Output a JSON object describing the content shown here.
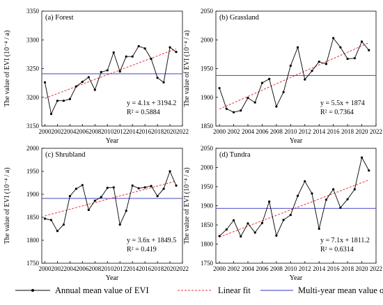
{
  "chart_data": [
    {
      "type": "line",
      "panel_label": "(a) Forest",
      "xlabel": "Year",
      "ylabel": "The value of EVI  (10⁻⁴ / a)",
      "xlim": [
        1999.5,
        2022
      ],
      "ylim": [
        3150,
        3350
      ],
      "xticks": [
        2000,
        2002,
        2004,
        2006,
        2008,
        2010,
        2012,
        2014,
        2016,
        2018,
        2020,
        2022
      ],
      "yticks": [
        3150,
        3200,
        3250,
        3300,
        3350
      ],
      "x": [
        2000,
        2001,
        2002,
        2003,
        2004,
        2005,
        2006,
        2007,
        2008,
        2009,
        2010,
        2011,
        2012,
        2013,
        2014,
        2015,
        2016,
        2017,
        2018,
        2019,
        2020,
        2021
      ],
      "series": [
        {
          "name": "Annual mean value of EVI",
          "values": [
            3226,
            3171,
            3194,
            3194,
            3197,
            3219,
            3227,
            3235,
            3213,
            3244,
            3247,
            3278,
            3245,
            3271,
            3271,
            3289,
            3285,
            3267,
            3234,
            3226,
            3287,
            3279
          ]
        }
      ],
      "linear_fit": {
        "slope": 4.1,
        "intercept": 3194.2,
        "x0": 1999
      },
      "mean_line": 3241,
      "equation": "y = 4.1x + 3194.2",
      "r2": "R² = 0.5884"
    },
    {
      "type": "line",
      "panel_label": "(b) Grassland",
      "xlabel": "Year",
      "ylabel": "The value of EVI  (10⁻⁴ / a)",
      "xlim": [
        1999.5,
        2022
      ],
      "ylim": [
        1850,
        2050
      ],
      "xticks": [
        2000,
        2002,
        2004,
        2006,
        2008,
        2010,
        2012,
        2014,
        2016,
        2018,
        2020,
        2022
      ],
      "yticks": [
        1850,
        1900,
        1950,
        2000,
        2050
      ],
      "x": [
        2000,
        2001,
        2002,
        2003,
        2004,
        2005,
        2006,
        2007,
        2008,
        2009,
        2010,
        2011,
        2012,
        2013,
        2014,
        2015,
        2016,
        2017,
        2018,
        2019,
        2020,
        2021
      ],
      "series": [
        {
          "name": "Annual mean value of EVI",
          "values": [
            1916,
            1880,
            1874,
            1877,
            1899,
            1891,
            1925,
            1932,
            1884,
            1909,
            1955,
            1987,
            1931,
            1946,
            1962,
            1958,
            2003,
            1987,
            1967,
            1968,
            1997,
            1982
          ]
        }
      ],
      "linear_fit": {
        "slope": 5.5,
        "intercept": 1874,
        "x0": 1999
      },
      "mean_line": 1938,
      "equation": "y = 5.5x + 1874",
      "r2": "R² = 0.7364"
    },
    {
      "type": "line",
      "panel_label": "(c) Shrubland",
      "xlabel": "Year",
      "ylabel": "The value of EVI  (10⁻⁴ / a)",
      "xlim": [
        1999.5,
        2022
      ],
      "ylim": [
        1750,
        2000
      ],
      "xticks": [
        2000,
        2002,
        2004,
        2006,
        2008,
        2010,
        2012,
        2014,
        2016,
        2018,
        2020,
        2022
      ],
      "yticks": [
        1750,
        1800,
        1850,
        1900,
        1950,
        2000
      ],
      "x": [
        2000,
        2001,
        2002,
        2003,
        2004,
        2005,
        2006,
        2007,
        2008,
        2009,
        2010,
        2011,
        2012,
        2013,
        2014,
        2015,
        2016,
        2017,
        2018,
        2019,
        2020,
        2021
      ],
      "series": [
        {
          "name": "Annual mean value of EVI",
          "values": [
            1847,
            1844,
            1820,
            1834,
            1896,
            1912,
            1920,
            1866,
            1886,
            1894,
            1914,
            1915,
            1834,
            1864,
            1919,
            1913,
            1915,
            1918,
            1896,
            1912,
            1950,
            1919
          ]
        }
      ],
      "linear_fit": {
        "slope": 3.6,
        "intercept": 1849.5,
        "x0": 1999
      },
      "mean_line": 1891,
      "equation": "y = 3.6x + 1849.5",
      "r2": "R² = 0.419"
    },
    {
      "type": "line",
      "panel_label": "(d) Tundra",
      "xlabel": "Year",
      "ylabel": "The value of EVI  (10⁻⁴ / a)",
      "xlim": [
        1999.5,
        2022
      ],
      "ylim": [
        1750,
        2050
      ],
      "xticks": [
        2000,
        2002,
        2004,
        2006,
        2008,
        2010,
        2012,
        2014,
        2016,
        2018,
        2020,
        2022
      ],
      "yticks": [
        1750,
        1800,
        1850,
        1900,
        1950,
        2000,
        2050
      ],
      "x": [
        2000,
        2001,
        2002,
        2003,
        2004,
        2005,
        2006,
        2007,
        2008,
        2009,
        2010,
        2011,
        2012,
        2013,
        2014,
        2015,
        2016,
        2017,
        2018,
        2019,
        2020,
        2021
      ],
      "series": [
        {
          "name": "Annual mean value of EVI",
          "values": [
            1821,
            1838,
            1862,
            1820,
            1854,
            1830,
            1855,
            1911,
            1822,
            1863,
            1876,
            1926,
            1964,
            1932,
            1840,
            1916,
            1943,
            1895,
            1917,
            1943,
            2026,
            1992
          ]
        }
      ],
      "linear_fit": {
        "slope": 7.1,
        "intercept": 1811.2,
        "x0": 1999
      },
      "mean_line": 1893,
      "equation": "y = 7.1x + 1811.2",
      "r2": "R² = 0.6314"
    }
  ],
  "legend": {
    "items": [
      {
        "label": "Annual mean value of EVI",
        "style": "line-marker",
        "color": "#000000"
      },
      {
        "label": "Linear fit",
        "style": "dashed",
        "color": "#e8333d"
      },
      {
        "label": "Multi-year mean value of EVI",
        "style": "solid",
        "color": "#5a5ac8"
      }
    ]
  },
  "colors": {
    "series": "#000000",
    "fit": "#e8333d",
    "mean": "#5a5ac8"
  }
}
